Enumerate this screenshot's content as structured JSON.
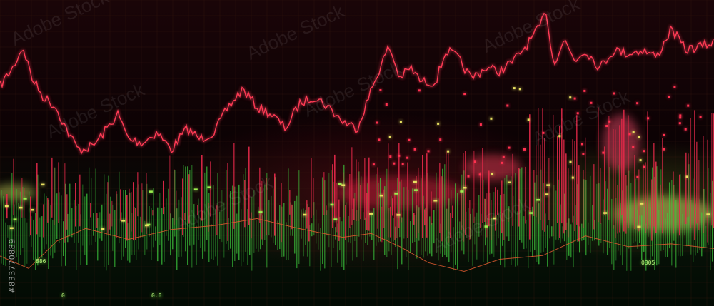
{
  "image": {
    "watermark": "Adobe Stock",
    "side_id": "#833770889",
    "readouts": [
      "886",
      "0.0",
      "0305",
      "0"
    ],
    "colors": {
      "background": "#070203",
      "red": "#e6294a",
      "green": "#3fd140",
      "yellow": "#e8e060",
      "grid": "#3a1a10"
    }
  }
}
